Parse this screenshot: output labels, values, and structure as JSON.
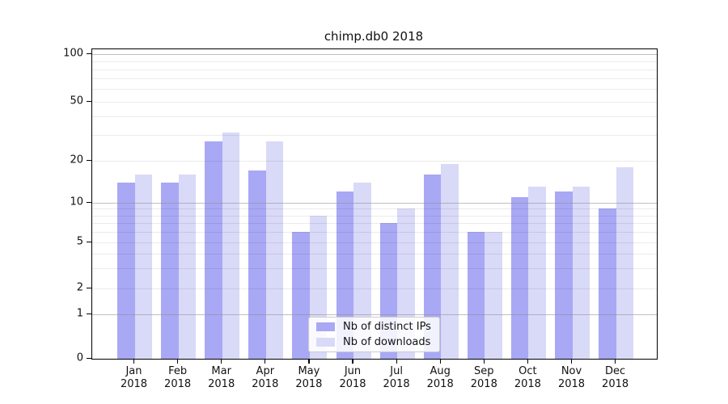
{
  "chart_data": {
    "type": "bar",
    "title": "chimp.db0 2018",
    "categories": [
      "Jan",
      "Feb",
      "Mar",
      "Apr",
      "May",
      "Jun",
      "Jul",
      "Aug",
      "Sep",
      "Oct",
      "Nov",
      "Dec"
    ],
    "year": "2018",
    "series": [
      {
        "name": "Nb of distinct IPs",
        "color": "#a8a8f5",
        "values": [
          14,
          14,
          27,
          17,
          6,
          12,
          7,
          16,
          6,
          11,
          12,
          9
        ]
      },
      {
        "name": "Nb of downloads",
        "color": "#d9d9f8",
        "values": [
          16,
          16,
          31,
          27,
          8,
          14,
          9,
          19,
          6,
          13,
          13,
          18
        ]
      }
    ],
    "yticks": [
      0,
      1,
      2,
      5,
      10,
      20,
      50,
      100
    ],
    "ylim": [
      0,
      110
    ],
    "yscale": "symlog",
    "grid": "both",
    "gridlines_major": [
      1,
      10,
      100
    ],
    "gridlines_minor": [
      2,
      3,
      4,
      5,
      6,
      7,
      8,
      9,
      20,
      30,
      40,
      50,
      60,
      70,
      80,
      90
    ],
    "legend_position": "lower center",
    "xlabel": "",
    "ylabel": ""
  }
}
